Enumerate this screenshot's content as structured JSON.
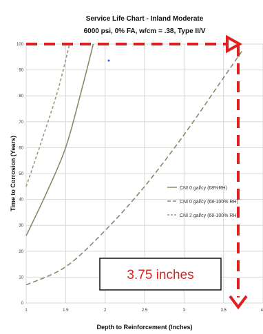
{
  "chart_data": {
    "type": "line",
    "title": "Service Life Chart -  Inland Moderate",
    "subtitle": "6000 psi, 0% FA, w/cm = .38, Type II/V",
    "xlabel": "Depth to Reinforcement (Inches)",
    "ylabel": "Time to Corrosion (Years)",
    "xlim": [
      1,
      4
    ],
    "ylim": [
      0,
      100
    ],
    "x_ticks": [
      "1",
      "1.5",
      "2",
      "2.5",
      "3",
      "3.5",
      "4"
    ],
    "y_ticks": [
      "0",
      "10",
      "20",
      "30",
      "40",
      "50",
      "60",
      "70",
      "80",
      "90",
      "100"
    ],
    "grid": true,
    "legend_position": "right",
    "series": [
      {
        "name": "CNI 0 gal/cy (68%RH)",
        "style": "solid",
        "color": "#8a8a6a",
        "x": [
          1,
          1.25,
          1.5,
          1.7,
          1.85
        ],
        "y": [
          26,
          42,
          60,
          82,
          100
        ]
      },
      {
        "name": "CNI 0 gal/cy (68-100% RH)",
        "style": "dashed",
        "color": "#8a8a6a",
        "x": [
          1,
          1.5,
          2,
          2.5,
          3,
          3.5,
          3.75
        ],
        "y": [
          7,
          14,
          28,
          45,
          65,
          87,
          98
        ]
      },
      {
        "name": "CNI 2 gal/cy (68-100% RH)",
        "style": "dashed-small",
        "color": "#9a9a7a",
        "x": [
          1,
          1.2,
          1.4,
          1.55
        ],
        "y": [
          45,
          63,
          82,
          100
        ]
      }
    ],
    "annotations": {
      "box_text": "3.75 inches",
      "arrow_x": 3.75,
      "arrow_color": "#e02020",
      "box_border_color": "#111111"
    }
  }
}
